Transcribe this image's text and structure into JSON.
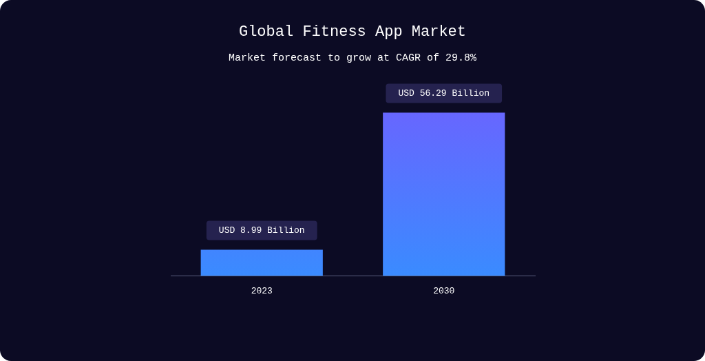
{
  "chart_data": {
    "type": "bar",
    "title": "Global Fitness App Market",
    "subtitle": "Market forecast to grow at CAGR of 29.8%",
    "categories": [
      "2023",
      "2030"
    ],
    "values": [
      8.99,
      56.29
    ],
    "color": "#3a8bff",
    "value_labels": [
      "USD 8.99 Billion",
      "USD 56.29 Billion"
    ]
  }
}
